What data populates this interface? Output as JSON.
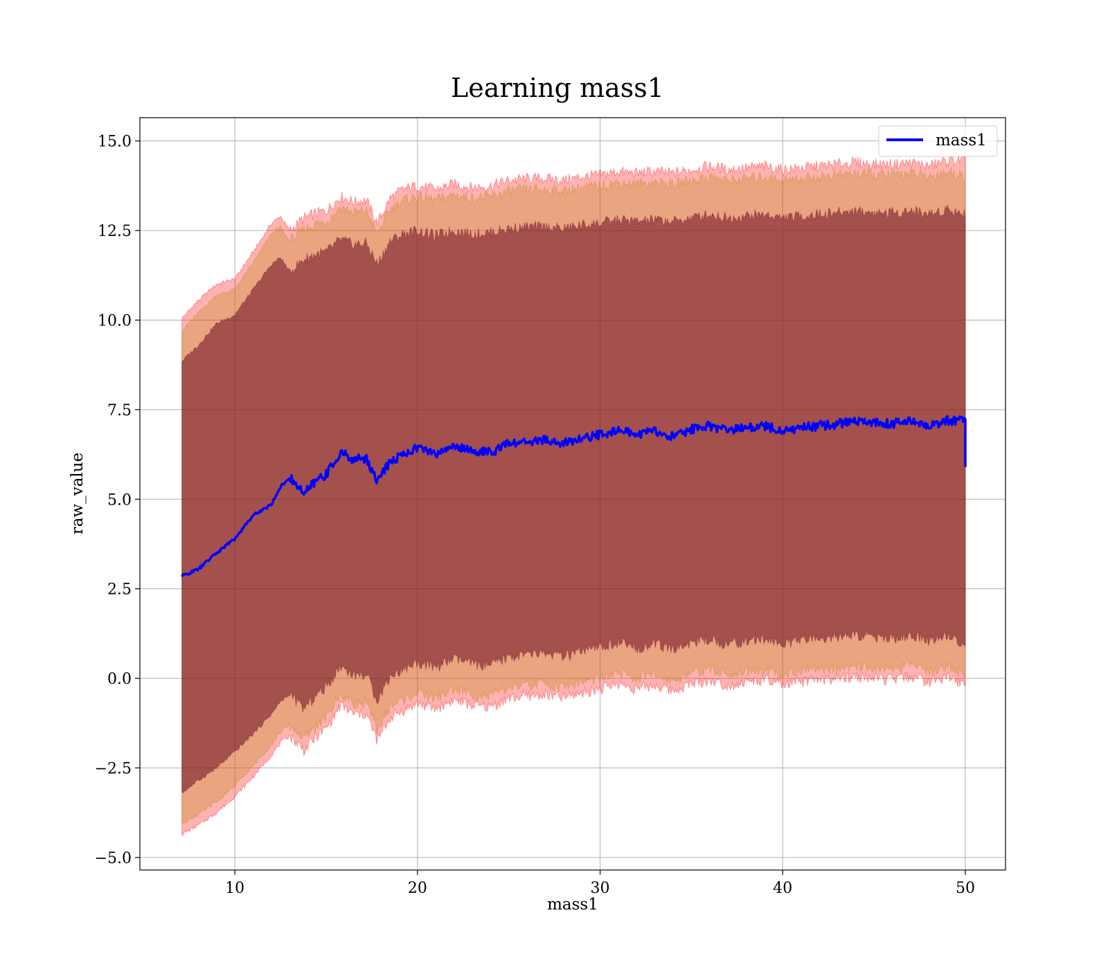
{
  "chart_data": {
    "type": "line",
    "title": "Learning mass1",
    "xlabel": "mass1",
    "ylabel": "raw_value",
    "xlim": [
      4.8,
      52.2
    ],
    "ylim": [
      -5.35,
      15.65
    ],
    "xticks": [
      10,
      20,
      30,
      40,
      50
    ],
    "xtick_labels": [
      "10",
      "20",
      "30",
      "40",
      "50"
    ],
    "yticks": [
      -5.0,
      -2.5,
      0.0,
      2.5,
      5.0,
      7.5,
      10.0,
      12.5,
      15.0
    ],
    "ytick_labels": [
      "−5.0",
      "−2.5",
      "0.0",
      "2.5",
      "5.0",
      "7.5",
      "10.0",
      "12.5",
      "15.0"
    ],
    "grid": true,
    "legend_position": "upper right",
    "x": [
      7.1,
      8,
      9,
      10,
      11,
      12,
      12.5,
      13,
      13.8,
      14.5,
      15,
      15.8,
      16.5,
      17.2,
      17.8,
      18.5,
      19.2,
      20,
      21,
      22,
      23,
      24,
      25,
      26,
      27,
      28,
      29,
      30,
      31,
      32,
      33,
      34,
      35,
      36,
      37,
      38,
      39,
      40,
      41,
      42,
      43,
      44,
      45,
      46,
      47,
      48,
      49,
      50
    ],
    "series": [
      {
        "name": "mass1",
        "color": "#0000ff",
        "values": [
          2.85,
          3.05,
          3.5,
          3.9,
          4.55,
          4.85,
          5.35,
          5.6,
          5.15,
          5.55,
          5.7,
          6.3,
          6.1,
          6.15,
          5.5,
          6.05,
          6.25,
          6.45,
          6.25,
          6.5,
          6.35,
          6.3,
          6.55,
          6.6,
          6.65,
          6.55,
          6.7,
          6.8,
          6.95,
          6.8,
          6.9,
          6.75,
          6.95,
          7.05,
          6.9,
          7.0,
          7.05,
          6.9,
          7.0,
          7.05,
          7.1,
          7.2,
          7.15,
          7.1,
          7.2,
          7.05,
          7.2,
          7.2
        ]
      }
    ],
    "end_drop": [
      50,
      5.9
    ],
    "bands": [
      {
        "role": "outer",
        "color": "#ff0000",
        "opacity": 0.3,
        "upper": [
          10.05,
          10.55,
          11.0,
          11.15,
          11.9,
          12.7,
          12.9,
          12.5,
          12.85,
          13.0,
          13.05,
          13.45,
          13.3,
          13.35,
          12.7,
          13.4,
          13.65,
          13.75,
          13.65,
          13.8,
          13.7,
          13.75,
          13.9,
          13.95,
          13.95,
          13.9,
          14.0,
          14.05,
          14.15,
          14.1,
          14.15,
          14.1,
          14.2,
          14.3,
          14.2,
          14.25,
          14.3,
          14.2,
          14.25,
          14.3,
          14.35,
          14.4,
          14.35,
          14.35,
          14.4,
          14.3,
          14.45,
          14.45
        ],
        "lower": [
          -4.35,
          -4.1,
          -3.75,
          -3.3,
          -2.75,
          -2.15,
          -1.8,
          -1.6,
          -2.0,
          -1.6,
          -1.4,
          -0.75,
          -1.0,
          -1.0,
          -1.75,
          -1.1,
          -0.9,
          -0.7,
          -0.85,
          -0.6,
          -0.75,
          -0.8,
          -0.55,
          -0.5,
          -0.45,
          -0.55,
          -0.4,
          -0.3,
          -0.15,
          -0.3,
          -0.2,
          -0.35,
          -0.15,
          -0.05,
          -0.2,
          -0.1,
          -0.05,
          -0.2,
          -0.1,
          -0.05,
          0.0,
          0.05,
          0.0,
          -0.05,
          0.05,
          -0.1,
          0.05,
          -0.2
        ]
      },
      {
        "role": "middle",
        "color": "#b8860b",
        "opacity": 0.3,
        "upper": [
          9.7,
          10.2,
          10.7,
          10.85,
          11.6,
          12.4,
          12.6,
          12.2,
          12.55,
          12.7,
          12.75,
          13.15,
          13.0,
          13.05,
          12.4,
          13.1,
          13.35,
          13.45,
          13.35,
          13.5,
          13.4,
          13.45,
          13.6,
          13.65,
          13.65,
          13.6,
          13.7,
          13.75,
          13.85,
          13.8,
          13.85,
          13.8,
          13.9,
          14.0,
          13.9,
          13.95,
          14.0,
          13.9,
          13.95,
          14.0,
          14.05,
          14.1,
          14.05,
          14.05,
          14.1,
          14.0,
          14.15,
          14.0
        ],
        "lower": [
          -4.05,
          -3.8,
          -3.45,
          -3.0,
          -2.45,
          -1.85,
          -1.5,
          -1.3,
          -1.7,
          -1.3,
          -1.1,
          -0.45,
          -0.7,
          -0.7,
          -1.45,
          -0.8,
          -0.6,
          -0.4,
          -0.55,
          -0.3,
          -0.45,
          -0.5,
          -0.25,
          -0.2,
          -0.15,
          -0.25,
          -0.1,
          0.0,
          0.15,
          0.0,
          0.1,
          -0.05,
          0.15,
          0.25,
          0.1,
          0.2,
          0.25,
          0.1,
          0.2,
          0.25,
          0.3,
          0.35,
          0.3,
          0.25,
          0.35,
          0.2,
          0.35,
          0.1
        ]
      },
      {
        "role": "inner",
        "color": "#6a0d24",
        "opacity": 0.55,
        "upper": [
          8.85,
          9.3,
          9.9,
          10.15,
          10.85,
          11.55,
          11.75,
          11.35,
          11.7,
          11.85,
          11.9,
          12.25,
          12.1,
          12.15,
          11.55,
          12.2,
          12.4,
          12.5,
          12.35,
          12.5,
          12.4,
          12.45,
          12.55,
          12.6,
          12.6,
          12.55,
          12.65,
          12.7,
          12.8,
          12.75,
          12.8,
          12.75,
          12.85,
          12.95,
          12.85,
          12.9,
          12.95,
          12.85,
          12.9,
          12.95,
          13.0,
          13.05,
          13.0,
          13.0,
          13.05,
          12.95,
          13.1,
          12.95
        ],
        "lower": [
          -3.2,
          -2.85,
          -2.5,
          -2.05,
          -1.55,
          -1.0,
          -0.65,
          -0.45,
          -0.85,
          -0.45,
          -0.25,
          0.35,
          0.1,
          0.1,
          -0.6,
          0.05,
          0.25,
          0.45,
          0.3,
          0.55,
          0.4,
          0.35,
          0.6,
          0.65,
          0.7,
          0.6,
          0.75,
          0.85,
          1.0,
          0.85,
          0.95,
          0.8,
          1.0,
          1.1,
          0.95,
          1.05,
          1.1,
          0.95,
          1.05,
          1.1,
          1.15,
          1.2,
          1.15,
          1.1,
          1.2,
          1.05,
          1.2,
          0.95
        ]
      }
    ],
    "legend": [
      {
        "label": "mass1",
        "color": "#0000ff"
      }
    ]
  }
}
